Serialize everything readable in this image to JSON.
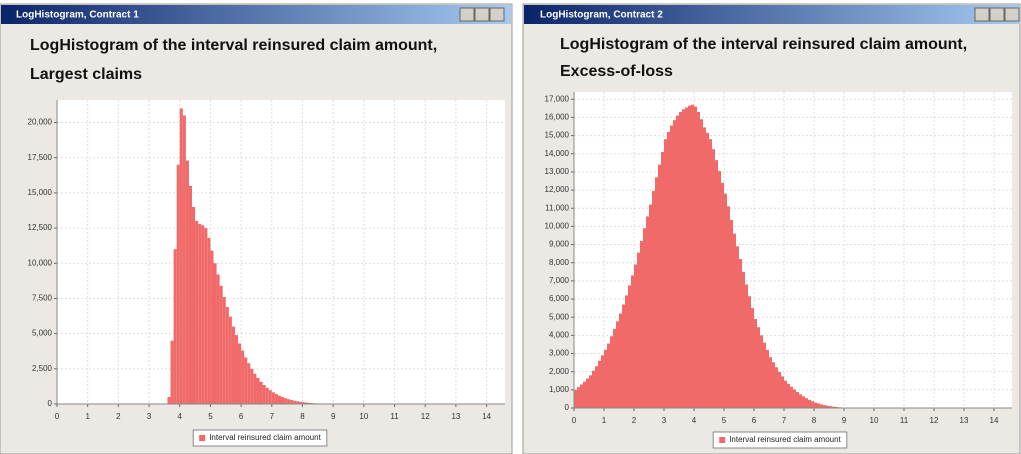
{
  "windows": [
    {
      "title": "LogHistogram, Contract 1"
    },
    {
      "title": "LogHistogram, Contract 2"
    }
  ],
  "chart_data": [
    {
      "type": "histogram",
      "title": [
        "LogHistogram of the interval reinsured claim amount,",
        "Largest claims"
      ],
      "bins": [
        3.6,
        3.7,
        3.8,
        3.9,
        4.0,
        4.1,
        4.2,
        4.3,
        4.4,
        4.5,
        4.6,
        4.7,
        4.8,
        4.9,
        5.0,
        5.1,
        5.2,
        5.3,
        5.4,
        5.5,
        5.6,
        5.7,
        5.8,
        5.9,
        6.0,
        6.1,
        6.2,
        6.3,
        6.4,
        6.5,
        6.6,
        6.7,
        6.8,
        6.9,
        7.0,
        7.1,
        7.2,
        7.3,
        7.4,
        7.5,
        7.6,
        7.7,
        7.8,
        7.9,
        8.0,
        8.1,
        8.2,
        8.3,
        8.4,
        8.5,
        8.6,
        8.7,
        8.8,
        8.9,
        9.0
      ],
      "series": [
        {
          "name": "Interval reinsured claim amount",
          "color": "#f06a6a",
          "values": [
            500,
            4500,
            11000,
            17000,
            21000,
            20500,
            17300,
            15500,
            14000,
            13000,
            12800,
            12700,
            12500,
            11800,
            10900,
            10000,
            9200,
            8400,
            7600,
            6900,
            6200,
            5500,
            4900,
            4300,
            3800,
            3300,
            2900,
            2500,
            2150,
            1850,
            1580,
            1350,
            1150,
            980,
            830,
            700,
            590,
            490,
            410,
            340,
            280,
            230,
            190,
            150,
            120,
            95,
            75,
            60,
            45,
            35,
            25,
            18,
            12,
            8
          ]
        }
      ],
      "xlim": [
        0,
        14.6
      ],
      "xticks": [
        0,
        1,
        2,
        3,
        4,
        5,
        6,
        7,
        8,
        9,
        10,
        11,
        12,
        13,
        14
      ],
      "ylim": [
        0,
        21600
      ],
      "yticks": [
        0,
        {
          "value": 2500,
          "label": "2,500"
        },
        {
          "value": 5000,
          "label": "5,000"
        },
        {
          "value": 7500,
          "label": "7,500"
        },
        {
          "value": 10000,
          "label": "10,000"
        },
        {
          "value": 12500,
          "label": "12,500"
        },
        {
          "value": 15000,
          "label": "15,000"
        },
        {
          "value": 17500,
          "label": "17,500"
        },
        {
          "value": 20000,
          "label": "20,000"
        }
      ],
      "grid": true
    },
    {
      "type": "histogram",
      "title": [
        "LogHistogram of the interval reinsured claim amount,",
        "Excess-of-loss"
      ],
      "bins": [
        0.0,
        0.1,
        0.2,
        0.3,
        0.4,
        0.5,
        0.6,
        0.7,
        0.8,
        0.9,
        1.0,
        1.1,
        1.2,
        1.3,
        1.4,
        1.5,
        1.6,
        1.7,
        1.8,
        1.9,
        2.0,
        2.1,
        2.2,
        2.3,
        2.4,
        2.5,
        2.6,
        2.7,
        2.8,
        2.9,
        3.0,
        3.1,
        3.2,
        3.3,
        3.4,
        3.5,
        3.6,
        3.7,
        3.8,
        3.9,
        4.0,
        4.1,
        4.2,
        4.3,
        4.4,
        4.5,
        4.6,
        4.7,
        4.8,
        4.9,
        5.0,
        5.1,
        5.2,
        5.3,
        5.4,
        5.5,
        5.6,
        5.7,
        5.8,
        5.9,
        6.0,
        6.1,
        6.2,
        6.3,
        6.4,
        6.5,
        6.6,
        6.7,
        6.8,
        6.9,
        7.0,
        7.1,
        7.2,
        7.3,
        7.4,
        7.5,
        7.6,
        7.7,
        7.8,
        7.9,
        8.0,
        8.1,
        8.2,
        8.3,
        8.4,
        8.5,
        8.6,
        8.7,
        8.8,
        8.9,
        9.0
      ],
      "series": [
        {
          "name": "Interval reinsured claim amount",
          "color": "#f06a6a",
          "values": [
            1000,
            1150,
            1300,
            1450,
            1620,
            1800,
            2050,
            2300,
            2600,
            2900,
            3200,
            3550,
            3950,
            4350,
            4770,
            5200,
            5700,
            6200,
            6750,
            7300,
            7900,
            8550,
            9200,
            9900,
            10550,
            11200,
            11950,
            12700,
            13400,
            14100,
            14800,
            15200,
            15550,
            15850,
            16100,
            16300,
            16450,
            16550,
            16650,
            16700,
            16600,
            16300,
            15900,
            15450,
            15150,
            14800,
            14250,
            13650,
            13050,
            12400,
            11800,
            11100,
            10350,
            9600,
            8900,
            8200,
            7500,
            6800,
            6150,
            5500,
            4900,
            4450,
            4000,
            3600,
            3200,
            2800,
            2520,
            2240,
            1980,
            1740,
            1500,
            1330,
            1170,
            1020,
            880,
            750,
            640,
            540,
            450,
            370,
            300,
            250,
            200,
            160,
            130,
            100,
            75,
            55,
            40,
            25
          ]
        }
      ],
      "xlim": [
        0,
        14.6
      ],
      "xticks": [
        0,
        1,
        2,
        3,
        4,
        5,
        6,
        7,
        8,
        9,
        10,
        11,
        12,
        13,
        14
      ],
      "ylim": [
        0,
        17400
      ],
      "yticks": [
        0,
        {
          "value": 1000,
          "label": "1,000"
        },
        {
          "value": 2000,
          "label": "2,000"
        },
        {
          "value": 3000,
          "label": "3,000"
        },
        {
          "value": 4000,
          "label": "4,000"
        },
        {
          "value": 5000,
          "label": "5,000"
        },
        {
          "value": 6000,
          "label": "6,000"
        },
        {
          "value": 7000,
          "label": "7,000"
        },
        {
          "value": 8000,
          "label": "8,000"
        },
        {
          "value": 9000,
          "label": "9,000"
        },
        {
          "value": 10000,
          "label": "10,000"
        },
        {
          "value": 11000,
          "label": "11,000"
        },
        {
          "value": 12000,
          "label": "12,000"
        },
        {
          "value": 13000,
          "label": "13,000"
        },
        {
          "value": 14000,
          "label": "14,000"
        },
        {
          "value": 15000,
          "label": "15,000"
        },
        {
          "value": 16000,
          "label": "16,000"
        },
        {
          "value": 17000,
          "label": "17,000"
        }
      ],
      "grid": true
    }
  ]
}
